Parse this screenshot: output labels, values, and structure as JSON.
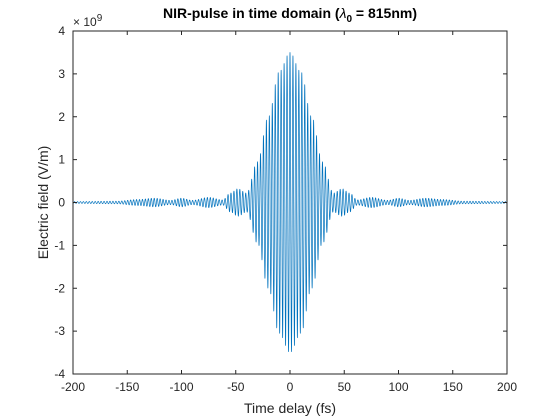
{
  "chart_data": {
    "type": "line",
    "title": "NIR-pulse in time domain (λ0 = 815nm)",
    "title_parts": {
      "prefix": "NIR-pulse in time domain (",
      "symbol": "λ",
      "subscript": "0",
      "suffix": " = 815nm)"
    },
    "xlabel": "Time delay (fs)",
    "ylabel": "Electric field (V/m)",
    "y_multiplier": {
      "base": "× 10",
      "exponent": "9",
      "factor": 1000000000
    },
    "xlim": [
      -200,
      200
    ],
    "ylim": [
      -4,
      4
    ],
    "x_ticks": [
      "-200",
      "-150",
      "-100",
      "-50",
      "0",
      "50",
      "100",
      "150",
      "200"
    ],
    "y_ticks": [
      "-4",
      "-3",
      "-2",
      "-1",
      "0",
      "1",
      "2",
      "3",
      "4"
    ],
    "grid": false,
    "line_color": "#0072BD",
    "series": [
      {
        "carrier_wavelength_nm": 815,
        "carrier_period_fs": 2.72,
        "peak_amplitude": 3.5,
        "main_lobe_fwhm_fs": 30,
        "envelope": {
          "x": [
            -200,
            -160,
            -140,
            -125,
            -110,
            -100,
            -90,
            -75,
            -62,
            -55,
            -48,
            -40,
            -30,
            -20,
            -10,
            0,
            10,
            20,
            30,
            40,
            48,
            55,
            62,
            75,
            90,
            100,
            110,
            125,
            140,
            160,
            200
          ],
          "y": [
            0.02,
            0.03,
            0.07,
            0.1,
            0.05,
            0.1,
            0.05,
            0.12,
            0.06,
            0.22,
            0.32,
            0.22,
            0.95,
            2.0,
            3.05,
            3.5,
            3.05,
            2.0,
            0.95,
            0.22,
            0.32,
            0.22,
            0.06,
            0.12,
            0.05,
            0.1,
            0.05,
            0.1,
            0.07,
            0.03,
            0.02
          ]
        }
      }
    ]
  }
}
